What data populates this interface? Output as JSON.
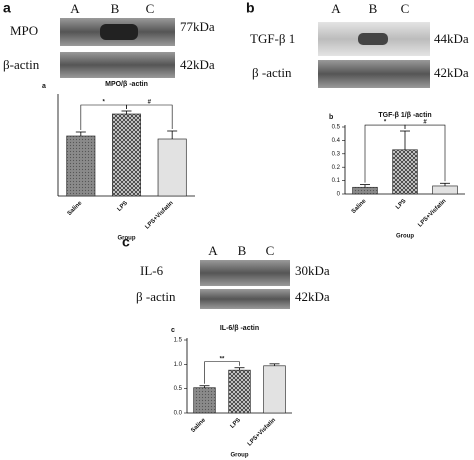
{
  "panels": [
    {
      "letter": "a",
      "lanes": [
        "A",
        "B",
        "C"
      ],
      "blots": [
        {
          "protein": "MPO",
          "size": "77kDa"
        },
        {
          "protein": "β-actin",
          "size": "42kDa"
        }
      ]
    },
    {
      "letter": "b",
      "lanes": [
        "A",
        "B",
        "C"
      ],
      "blots": [
        {
          "protein": "TGF-β 1",
          "size": "44kDa"
        },
        {
          "protein": "β -actin",
          "size": "42kDa"
        }
      ]
    },
    {
      "letter": "c",
      "lanes": [
        "A",
        "B",
        "C"
      ],
      "blots": [
        {
          "protein": "IL-6",
          "size": "30kDa"
        },
        {
          "protein": "β -actin",
          "size": "42kDa"
        }
      ]
    }
  ],
  "chart_data": [
    {
      "type": "bar",
      "label": "a",
      "title": "MPO/β -actin",
      "categories": [
        "Saline",
        "LPS",
        "LPS+Visfatin"
      ],
      "values": [
        0.6,
        0.82,
        0.57
      ],
      "errors": [
        0.04,
        0.03,
        0.08
      ],
      "ylim": [
        0,
        1
      ],
      "xlabel": "Group",
      "annotations": [
        "*",
        "#"
      ]
    },
    {
      "type": "bar",
      "label": "b",
      "title": "TGF-β 1/β -actin",
      "categories": [
        "Saline",
        "LPS",
        "LPS+Visfatin"
      ],
      "values": [
        0.05,
        0.33,
        0.06
      ],
      "errors": [
        0.02,
        0.14,
        0.02
      ],
      "ylim": [
        0,
        0.5
      ],
      "yticks": [
        0,
        0.1,
        0.2,
        0.3,
        0.4,
        0.5
      ],
      "xlabel": "Group",
      "annotations": [
        "*",
        "#"
      ]
    },
    {
      "type": "bar",
      "label": "c",
      "title": "IL-6/β -actin",
      "categories": [
        "Saline",
        "LPS",
        "LPS+Visfatin"
      ],
      "values": [
        0.52,
        0.88,
        0.97
      ],
      "errors": [
        0.04,
        0.05,
        0.04
      ],
      "ylim": [
        0,
        1.5
      ],
      "yticks": [
        {
          "value": 0,
          "label": "0.0"
        },
        {
          "value": 0.5,
          "label": "0.5"
        },
        {
          "value": 1,
          "label": "1.0"
        },
        {
          "value": 1.5,
          "label": "1.5"
        }
      ],
      "xlabel": "Group",
      "annotations": [
        "**"
      ]
    }
  ]
}
